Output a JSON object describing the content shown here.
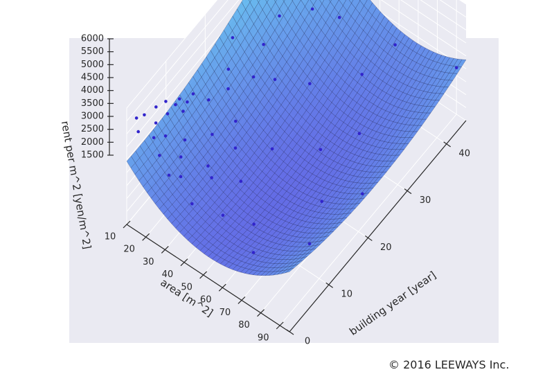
{
  "copyright": "© 2016 LEEWAYS Inc.",
  "chart_data": {
    "type": "surface3d",
    "title": "",
    "xlabel": "building year [year]",
    "ylabel": "area [m^2]",
    "zlabel": "rent per m^2 [yen/m^2]",
    "x_ticks": [
      "0",
      "10",
      "20",
      "30",
      "40"
    ],
    "y_ticks": [
      "10",
      "20",
      "30",
      "40",
      "50",
      "60",
      "70",
      "80",
      "90"
    ],
    "z_ticks": [
      "1500",
      "2000",
      "2500",
      "3000",
      "3500",
      "4000",
      "4500",
      "5000",
      "5500",
      "6000"
    ],
    "xlim": [
      0,
      45
    ],
    "ylim": [
      10,
      95
    ],
    "zlim": [
      1500,
      6000
    ],
    "colors": {
      "pane_background": "#eaeaf2",
      "surface_low": "#3b32e0",
      "surface_high": "#45c8f0",
      "scatter": "#3124cc"
    },
    "surface_min": {
      "building_year": 14,
      "area": 58,
      "rent": 2100
    },
    "surface_max": {
      "building_year": 0,
      "area": 12,
      "rent": 5500
    },
    "points": [
      [
        3.5,
        12,
        5200
      ],
      [
        6,
        13,
        5100
      ],
      [
        8,
        14,
        5000
      ],
      [
        2,
        11,
        5300
      ],
      [
        1,
        14,
        5100
      ],
      [
        4.5,
        16,
        4900
      ],
      [
        7,
        17,
        4850
      ],
      [
        9.5,
        16,
        4700
      ],
      [
        11,
        15,
        4600
      ],
      [
        5,
        20,
        4500
      ],
      [
        3,
        18,
        4700
      ],
      [
        10,
        19,
        4500
      ],
      [
        12,
        17,
        4400
      ],
      [
        14,
        16,
        4300
      ],
      [
        2.5,
        22,
        4300
      ],
      [
        8,
        24,
        4000
      ],
      [
        16,
        20,
        3900
      ],
      [
        6,
        26,
        3800
      ],
      [
        20,
        22,
        3700
      ],
      [
        13,
        28,
        3500
      ],
      [
        4,
        30,
        3600
      ],
      [
        18,
        30,
        3200
      ],
      [
        22,
        18,
        3900
      ],
      [
        25,
        25,
        3400
      ],
      [
        30,
        20,
        3500
      ],
      [
        9,
        34,
        3300
      ],
      [
        15,
        36,
        3000
      ],
      [
        28,
        30,
        3000
      ],
      [
        2,
        40,
        3400
      ],
      [
        35,
        18,
        3600
      ],
      [
        12,
        45,
        2700
      ],
      [
        40,
        25,
        3300
      ],
      [
        5,
        50,
        2900
      ],
      [
        20,
        45,
        2500
      ],
      [
        32,
        40,
        2600
      ],
      [
        8,
        60,
        2500
      ],
      [
        25,
        60,
        2300
      ],
      [
        38,
        55,
        2600
      ],
      [
        3,
        70,
        2800
      ],
      [
        18,
        75,
        2300
      ],
      [
        42,
        35,
        3100
      ],
      [
        30,
        70,
        2500
      ],
      [
        10,
        85,
        2600
      ],
      [
        44,
        60,
        2900
      ],
      [
        22,
        88,
        2500
      ],
      [
        45,
        90,
        3300
      ],
      [
        1,
        30,
        4200
      ],
      [
        7,
        40,
        3500
      ],
      [
        26,
        12,
        4100
      ],
      [
        36,
        12,
        4000
      ]
    ]
  }
}
